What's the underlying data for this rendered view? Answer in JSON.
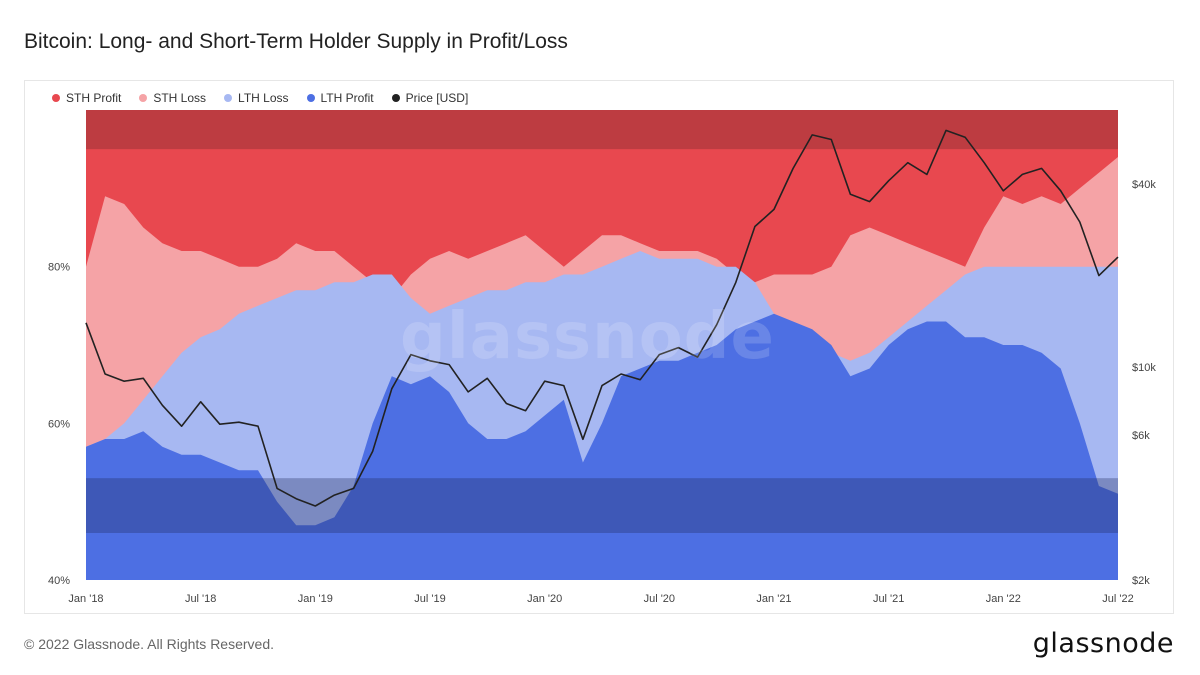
{
  "header": {
    "title": "Bitcoin: Long- and Short-Term Holder Supply in Profit/Loss"
  },
  "footer": {
    "copyright": "© 2022 Glassnode. All Rights Reserved.",
    "brand": "glassnode"
  },
  "watermark": "glassnode",
  "legend": [
    {
      "label": "STH Profit",
      "color": "#e8484f"
    },
    {
      "label": "STH Loss",
      "color": "#f5a3a6"
    },
    {
      "label": "LTH Loss",
      "color": "#a7b8f2"
    },
    {
      "label": "LTH Profit",
      "color": "#4d6fe3"
    },
    {
      "label": "Price [USD]",
      "color": "#222222"
    }
  ],
  "chart_data": {
    "type": "area",
    "title": "Bitcoin: Long- and Short-Term Holder Supply in Profit/Loss",
    "x_ticks": [
      "Jan '18",
      "Jul '18",
      "Jan '19",
      "Jul '19",
      "Jan '20",
      "Jul '20",
      "Jan '21",
      "Jul '21",
      "Jan '22",
      "Jul '22"
    ],
    "y_left": {
      "ticks": [
        "40%",
        "60%",
        "80%"
      ],
      "range": [
        40,
        100
      ]
    },
    "y_right": {
      "ticks": [
        "$2k",
        "$6k",
        "$10k",
        "$40k"
      ],
      "scale": "log",
      "range": [
        2000,
        70000
      ]
    },
    "bands": {
      "upper": [
        95,
        100
      ],
      "lower": [
        46,
        53
      ]
    },
    "dates": [
      "2018-01",
      "2018-02",
      "2018-03",
      "2018-04",
      "2018-05",
      "2018-06",
      "2018-07",
      "2018-08",
      "2018-09",
      "2018-10",
      "2018-11",
      "2018-12",
      "2019-01",
      "2019-02",
      "2019-03",
      "2019-04",
      "2019-05",
      "2019-06",
      "2019-07",
      "2019-08",
      "2019-09",
      "2019-10",
      "2019-11",
      "2019-12",
      "2020-01",
      "2020-02",
      "2020-03",
      "2020-04",
      "2020-05",
      "2020-06",
      "2020-07",
      "2020-08",
      "2020-09",
      "2020-10",
      "2020-11",
      "2020-12",
      "2021-01",
      "2021-02",
      "2021-03",
      "2021-04",
      "2021-05",
      "2021-06",
      "2021-07",
      "2021-08",
      "2021-09",
      "2021-10",
      "2021-11",
      "2021-12",
      "2022-01",
      "2022-02",
      "2022-03",
      "2022-04",
      "2022-05",
      "2022-06",
      "2022-07"
    ],
    "series": [
      {
        "name": "LTH Profit",
        "values": [
          57,
          58,
          58,
          59,
          57,
          56,
          56,
          55,
          54,
          54,
          50,
          47,
          47,
          48,
          52,
          60,
          66,
          65,
          66,
          64,
          60,
          58,
          58,
          59,
          61,
          63,
          55,
          60,
          66,
          67,
          68,
          68,
          69,
          70,
          72,
          73,
          74,
          73,
          72,
          70,
          66,
          67,
          70,
          72,
          73,
          73,
          71,
          71,
          70,
          70,
          69,
          67,
          60,
          52,
          51
        ]
      },
      {
        "name": "LTH Loss",
        "values": [
          57,
          58,
          60,
          63,
          66,
          69,
          71,
          72,
          74,
          75,
          76,
          77,
          77,
          78,
          78,
          79,
          79,
          76,
          74,
          75,
          76,
          77,
          77,
          78,
          78,
          79,
          79,
          80,
          81,
          82,
          81,
          81,
          81,
          80,
          80,
          78,
          74,
          71,
          70,
          69,
          68,
          69,
          71,
          73,
          75,
          77,
          79,
          80,
          80,
          80,
          80,
          80,
          80,
          80,
          80
        ]
      },
      {
        "name": "STH Loss",
        "values": [
          80,
          89,
          88,
          85,
          83,
          82,
          82,
          81,
          80,
          80,
          81,
          83,
          82,
          82,
          80,
          78,
          76,
          79,
          81,
          82,
          81,
          82,
          83,
          84,
          82,
          80,
          82,
          84,
          84,
          83,
          82,
          82,
          82,
          81,
          79,
          78,
          79,
          79,
          79,
          80,
          84,
          85,
          84,
          83,
          82,
          81,
          80,
          85,
          89,
          88,
          89,
          88,
          90,
          92,
          94
        ]
      },
      {
        "name": "STH Profit",
        "values": [
          100,
          100,
          100,
          100,
          100,
          100,
          100,
          100,
          100,
          100,
          100,
          100,
          100,
          100,
          100,
          100,
          100,
          100,
          100,
          100,
          100,
          100,
          100,
          100,
          100,
          100,
          100,
          100,
          100,
          100,
          100,
          100,
          100,
          100,
          100,
          100,
          100,
          100,
          100,
          100,
          100,
          100,
          100,
          100,
          100,
          100,
          100,
          100,
          100,
          100,
          100,
          100,
          100,
          100,
          100
        ]
      },
      {
        "name": "Price [USD]",
        "values": [
          14000,
          9500,
          9000,
          9200,
          7500,
          6400,
          7700,
          6500,
          6600,
          6400,
          4000,
          3700,
          3500,
          3800,
          4000,
          5300,
          8500,
          11000,
          10500,
          10200,
          8300,
          9200,
          7600,
          7200,
          9000,
          8700,
          5800,
          8700,
          9500,
          9100,
          11000,
          11600,
          10800,
          13800,
          19000,
          29000,
          33000,
          45000,
          58000,
          56000,
          37000,
          35000,
          41000,
          47000,
          43000,
          60000,
          57000,
          47000,
          38000,
          43000,
          45000,
          38000,
          30000,
          20000,
          23000
        ]
      }
    ]
  }
}
